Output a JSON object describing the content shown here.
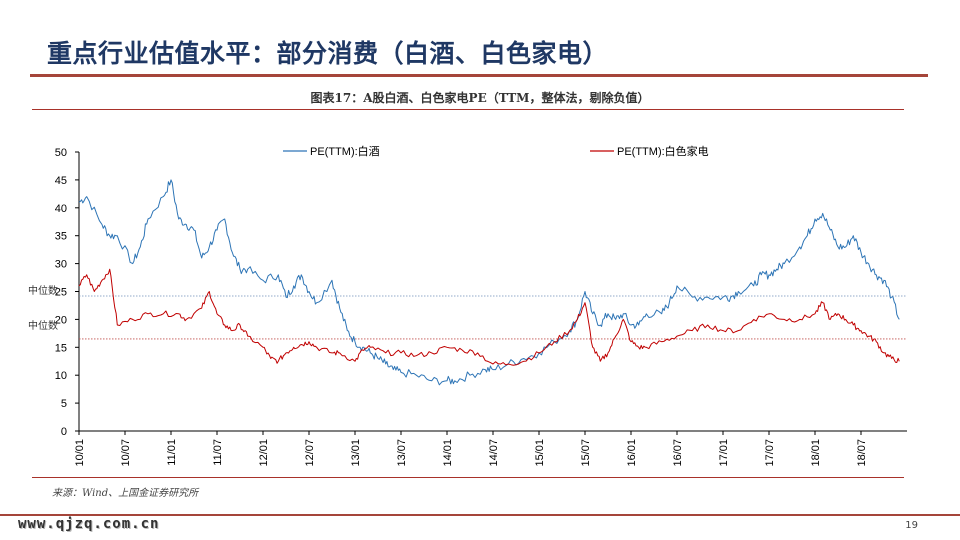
{
  "slide": {
    "title": "重点行业估值水平：部分消费（白酒、白色家电）",
    "figure_caption": "图表17：A股白酒、白色家电PE（TTM，整体法，剔除负值）",
    "source": "来源：Wind、上国金证券研究所",
    "watermark": "www.qjzq.com.cn",
    "page_number": "19",
    "accent_color": "#a5453a",
    "title_color": "#1f3864"
  },
  "chart_data": {
    "type": "line",
    "title": "",
    "xlabel": "",
    "ylabel": "",
    "ylim": [
      0,
      50
    ],
    "yticks": [
      0,
      5,
      10,
      15,
      20,
      25,
      30,
      35,
      40,
      45,
      50
    ],
    "xticks": [
      "10/01",
      "10/07",
      "11/01",
      "11/07",
      "12/01",
      "12/07",
      "13/01",
      "13/07",
      "14/01",
      "14/07",
      "15/01",
      "15/07",
      "16/01",
      "16/07",
      "17/01",
      "17/07",
      "18/01",
      "18/07"
    ],
    "xrange": [
      "10/01",
      "18/12"
    ],
    "grid": false,
    "legend": "top",
    "reference_lines": [
      {
        "label": "中位数",
        "value": 24.2,
        "color": "#6d8fb8"
      },
      {
        "label": "中位数",
        "value": 16.5,
        "color": "#c0504d"
      }
    ],
    "series": [
      {
        "name": "PE(TTM):白酒",
        "color": "#2e75b6",
        "x": [
          "10/01",
          "10/02",
          "10/04",
          "10/05",
          "10/06",
          "10/08",
          "10/09",
          "10/10",
          "10/12",
          "11/01",
          "11/02",
          "11/03",
          "11/04",
          "11/05",
          "11/06",
          "11/07",
          "11/08",
          "11/09",
          "11/10",
          "11/11",
          "12/01",
          "12/03",
          "12/04",
          "12/05",
          "12/06",
          "12/07",
          "12/08",
          "12/10",
          "12/11",
          "12/12",
          "13/01",
          "13/02",
          "13/03",
          "13/04",
          "13/05",
          "13/06",
          "13/07",
          "13/09",
          "13/11",
          "14/01",
          "14/02",
          "14/04",
          "14/06",
          "14/07",
          "14/09",
          "14/11",
          "15/01",
          "15/03",
          "15/05",
          "15/06",
          "15/07",
          "15/08",
          "15/09",
          "15/10",
          "15/11",
          "15/12",
          "16/01",
          "16/02",
          "16/03",
          "16/05",
          "16/06",
          "16/07",
          "16/09",
          "16/11",
          "17/01",
          "17/02",
          "17/03",
          "17/05",
          "17/06",
          "17/07",
          "17/08",
          "17/09",
          "17/11",
          "17/12",
          "18/01",
          "18/02",
          "18/03",
          "18/04",
          "18/05",
          "18/06",
          "18/07",
          "18/08",
          "18/09",
          "18/10",
          "18/11",
          "18/12"
        ],
        "values": [
          41,
          42,
          37,
          35,
          35,
          30,
          33,
          38,
          42,
          45,
          38,
          37,
          36,
          31,
          33,
          36,
          38,
          32,
          29,
          29,
          27,
          28,
          24,
          26,
          28,
          25,
          23,
          27,
          22,
          18,
          16,
          15,
          14,
          13,
          12,
          11,
          10.5,
          10,
          9,
          9,
          9,
          10,
          11,
          11,
          12,
          13,
          14,
          16,
          18,
          20,
          25,
          21,
          19,
          21,
          20,
          21,
          19,
          19,
          21,
          21,
          23,
          26,
          24,
          24,
          24,
          24,
          25,
          26,
          28,
          28,
          29,
          30,
          33,
          35,
          38,
          39,
          36,
          33,
          33,
          35,
          32,
          30,
          28,
          27,
          24,
          20
        ]
      },
      {
        "name": "PE(TTM):白色家电",
        "color": "#c00000",
        "x": [
          "10/01",
          "10/02",
          "10/03",
          "10/04",
          "10/05",
          "10/06",
          "10/08",
          "10/10",
          "10/12",
          "11/02",
          "11/03",
          "11/05",
          "11/06",
          "11/07",
          "11/08",
          "11/09",
          "11/10",
          "11/11",
          "12/01",
          "12/02",
          "12/03",
          "12/04",
          "12/05",
          "12/06",
          "12/07",
          "12/08",
          "12/10",
          "12/11",
          "13/01",
          "13/02",
          "13/03",
          "13/05",
          "13/07",
          "13/09",
          "13/11",
          "14/01",
          "14/03",
          "14/05",
          "14/07",
          "14/09",
          "14/11",
          "15/01",
          "15/03",
          "15/05",
          "15/06",
          "15/07",
          "15/08",
          "15/09",
          "15/10",
          "15/11",
          "15/12",
          "16/01",
          "16/02",
          "16/03",
          "16/05",
          "16/07",
          "16/09",
          "16/11",
          "17/01",
          "17/03",
          "17/05",
          "17/07",
          "17/09",
          "17/11",
          "18/01",
          "18/02",
          "18/03",
          "18/04",
          "18/05",
          "18/06",
          "18/07",
          "18/08",
          "18/09",
          "18/10",
          "18/11",
          "18/12"
        ],
        "values": [
          26,
          28,
          25,
          27,
          29,
          19,
          20,
          21,
          21,
          21,
          20,
          22,
          25,
          21,
          19,
          18,
          19,
          17,
          15,
          13,
          12.5,
          14,
          15,
          15.5,
          16,
          15,
          14,
          14,
          12.5,
          14.5,
          15,
          14,
          14,
          13.5,
          14,
          15,
          14.5,
          14,
          12,
          12,
          12.5,
          14,
          16,
          18,
          20,
          23,
          15,
          12.5,
          14,
          17,
          20,
          16,
          15,
          15,
          16,
          17,
          18,
          19,
          18,
          18,
          20,
          21,
          20,
          20,
          21,
          23,
          20,
          21,
          20,
          19,
          18,
          17,
          16,
          14,
          13,
          12.5
        ]
      }
    ]
  }
}
